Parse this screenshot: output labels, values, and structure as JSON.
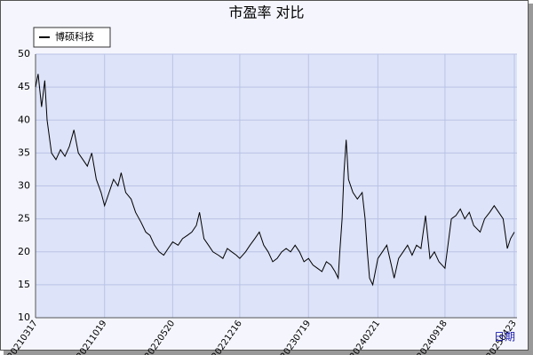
{
  "chart_data": {
    "type": "line",
    "title": "市盈率  对比",
    "x_label": "日期",
    "x": [
      "2021-03-17",
      "2021-03-25",
      "2021-04-05",
      "2021-04-15",
      "2021-04-22",
      "2021-05-06",
      "2021-05-20",
      "2021-06-03",
      "2021-06-17",
      "2021-07-01",
      "2021-07-15",
      "2021-07-29",
      "2021-08-12",
      "2021-08-26",
      "2021-09-09",
      "2021-09-23",
      "2021-10-08",
      "2021-10-19",
      "2021-11-02",
      "2021-11-16",
      "2021-11-30",
      "2021-12-10",
      "2021-12-24",
      "2022-01-10",
      "2022-01-24",
      "2022-02-10",
      "2022-02-25",
      "2022-03-10",
      "2022-03-24",
      "2022-04-08",
      "2022-04-22",
      "2022-05-06",
      "2022-05-20",
      "2022-06-06",
      "2022-06-20",
      "2022-07-05",
      "2022-07-19",
      "2022-08-02",
      "2022-08-12",
      "2022-08-26",
      "2022-09-09",
      "2022-09-23",
      "2022-10-10",
      "2022-10-24",
      "2022-11-07",
      "2022-11-21",
      "2022-12-05",
      "2022-12-16",
      "2023-01-03",
      "2023-01-17",
      "2023-02-01",
      "2023-02-15",
      "2023-03-01",
      "2023-03-15",
      "2023-03-29",
      "2023-04-12",
      "2023-04-26",
      "2023-05-10",
      "2023-05-24",
      "2023-06-07",
      "2023-06-21",
      "2023-07-05",
      "2023-07-19",
      "2023-08-02",
      "2023-08-16",
      "2023-08-30",
      "2023-09-13",
      "2023-09-27",
      "2023-10-10",
      "2023-10-20",
      "2023-10-25",
      "2023-11-01",
      "2023-11-07",
      "2023-11-14",
      "2023-11-21",
      "2023-12-05",
      "2023-12-19",
      "2024-01-03",
      "2024-01-12",
      "2024-01-19",
      "2024-01-26",
      "2024-02-05",
      "2024-02-21",
      "2024-03-06",
      "2024-03-20",
      "2024-04-03",
      "2024-04-12",
      "2024-04-26",
      "2024-05-10",
      "2024-05-24",
      "2024-06-07",
      "2024-06-21",
      "2024-07-05",
      "2024-07-19",
      "2024-08-02",
      "2024-08-16",
      "2024-08-30",
      "2024-09-18",
      "2024-10-08",
      "2024-10-22",
      "2024-11-05",
      "2024-11-19",
      "2024-12-03",
      "2024-12-17",
      "2025-01-06",
      "2025-01-20",
      "2025-02-05",
      "2025-02-19",
      "2025-03-05",
      "2025-03-19",
      "2025-04-01",
      "2025-04-11",
      "2025-04-23"
    ],
    "series": [
      {
        "name": "博硕科技",
        "color": "#000000",
        "values": [
          45,
          47,
          42,
          46,
          40,
          35,
          34,
          35.5,
          34.5,
          36,
          38.5,
          35,
          34,
          33,
          35,
          31,
          29,
          27,
          29,
          31,
          30,
          32,
          29,
          28,
          26,
          24.5,
          23,
          22.5,
          21,
          20,
          19.5,
          20.5,
          21.5,
          21,
          22,
          22.5,
          23,
          24,
          26,
          22,
          21,
          20,
          19.5,
          19,
          20.5,
          20,
          19.5,
          19,
          20,
          21,
          22,
          23,
          21,
          20,
          18.5,
          19,
          20,
          20.5,
          20,
          21,
          20,
          18.5,
          19,
          18,
          17.5,
          17,
          18.5,
          18,
          17,
          16,
          20,
          25,
          32,
          37,
          31,
          29,
          28,
          29,
          25,
          20,
          16,
          15,
          19,
          20,
          21,
          18,
          16,
          19,
          20,
          21,
          19.5,
          21,
          20.5,
          25.5,
          19,
          20,
          18.5,
          17.5,
          25,
          25.5,
          26.5,
          25,
          26,
          24,
          23,
          25,
          26,
          27,
          26,
          25,
          20.5,
          22,
          23
        ]
      }
    ],
    "xlim": [
      "2021-03-17",
      "2025-04-23"
    ],
    "xticks": [
      {
        "value": "2021-03-17",
        "label": "20210317"
      },
      {
        "value": "2021-10-19",
        "label": "20211019"
      },
      {
        "value": "2022-05-20",
        "label": "20220520"
      },
      {
        "value": "2022-12-16",
        "label": "20221216"
      },
      {
        "value": "2023-07-19",
        "label": "20230719"
      },
      {
        "value": "2024-02-21",
        "label": "20240221"
      },
      {
        "value": "2024-09-18",
        "label": "20240918"
      },
      {
        "value": "2025-04-23",
        "label": "20250423"
      }
    ],
    "ylim": [
      10,
      50
    ],
    "yticks": [
      10,
      15,
      20,
      25,
      30,
      35,
      40,
      45,
      50
    ],
    "grid": true,
    "legend": "upper left"
  }
}
